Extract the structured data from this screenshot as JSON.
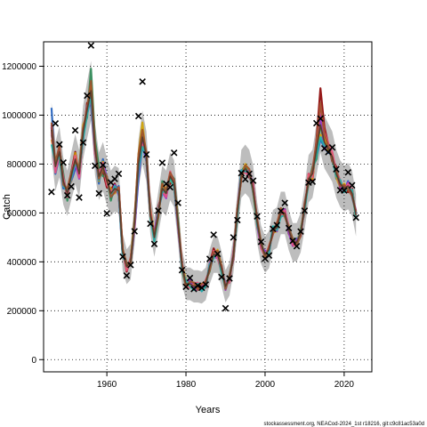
{
  "chart_data": {
    "type": "line",
    "xlabel": "Years",
    "ylabel": "Catch",
    "xlim": [
      1944,
      2027
    ],
    "ylim": [
      -50000,
      1300000
    ],
    "xticks": [
      1960,
      1980,
      2000,
      2020
    ],
    "yticks": [
      0,
      200000,
      400000,
      600000,
      800000,
      1000000,
      1200000
    ],
    "grid": true,
    "footer": "stockassessment.org, NEACod-2024_1st r18216, git:c9c81ac53a0d",
    "band_color": "#bdbdbd",
    "observed_marker": "x",
    "observed_catch": {
      "x": [
        1946,
        1947,
        1948,
        1949,
        1950,
        1951,
        1952,
        1953,
        1954,
        1955,
        1956,
        1957,
        1958,
        1959,
        1960,
        1961,
        1962,
        1963,
        1964,
        1965,
        1966,
        1967,
        1968,
        1969,
        1970,
        1971,
        1972,
        1973,
        1974,
        1975,
        1976,
        1977,
        1978,
        1979,
        1980,
        1981,
        1982,
        1983,
        1984,
        1985,
        1986,
        1987,
        1988,
        1989,
        1990,
        1991,
        1992,
        1993,
        1994,
        1995,
        1996,
        1997,
        1998,
        1999,
        2000,
        2001,
        2002,
        2003,
        2004,
        2005,
        2006,
        2007,
        2008,
        2009,
        2010,
        2011,
        2012,
        2013,
        2014,
        2015,
        2016,
        2017,
        2018,
        2019,
        2020,
        2021,
        2022,
        2023
      ],
      "y": [
        686000,
        966000,
        880000,
        806000,
        672000,
        708000,
        938000,
        663000,
        888000,
        1080000,
        1285000,
        793000,
        680000,
        796000,
        598000,
        725000,
        739000,
        760000,
        421000,
        344000,
        387000,
        525000,
        996000,
        1137000,
        839000,
        556000,
        473000,
        609000,
        805000,
        719000,
        705000,
        846000,
        641000,
        366000,
        298000,
        334000,
        289000,
        303000,
        294000,
        307000,
        412000,
        511000,
        432000,
        338000,
        210000,
        332000,
        500000,
        571000,
        763000,
        738000,
        760000,
        732000,
        586000,
        482000,
        413000,
        426000,
        535000,
        550000,
        608000,
        641000,
        538000,
        486000,
        464000,
        524000,
        609000,
        724000,
        728000,
        967000,
        986000,
        864000,
        849000,
        868000,
        779000,
        693000,
        692000,
        766000,
        713000,
        581000
      ]
    },
    "estimated_catch": {
      "x": [
        1946,
        1947,
        1948,
        1949,
        1950,
        1951,
        1952,
        1953,
        1954,
        1955,
        1956,
        1957,
        1958,
        1959,
        1960,
        1961,
        1962,
        1963,
        1964,
        1965,
        1966,
        1967,
        1968,
        1969,
        1970,
        1971,
        1972,
        1973,
        1974,
        1975,
        1976,
        1977,
        1978,
        1979,
        1980,
        1981,
        1982,
        1983,
        1984,
        1985,
        1986,
        1987,
        1988,
        1989,
        1990,
        1991,
        1992,
        1993,
        1994,
        1995,
        1996,
        1997,
        1998,
        1999,
        2000,
        2001,
        2002,
        2003,
        2004,
        2005,
        2006,
        2007,
        2008,
        2009,
        2010,
        2011,
        2012,
        2013,
        2014,
        2015,
        2016,
        2017,
        2018,
        2019,
        2020,
        2021,
        2022,
        2023
      ],
      "y": [
        940000,
        790000,
        850000,
        730000,
        680000,
        750000,
        820000,
        760000,
        930000,
        1020000,
        1100000,
        860000,
        750000,
        790000,
        730000,
        680000,
        700000,
        690000,
        440000,
        380000,
        400000,
        560000,
        800000,
        910000,
        830000,
        600000,
        500000,
        600000,
        700000,
        680000,
        750000,
        720000,
        560000,
        380000,
        310000,
        310000,
        300000,
        300000,
        295000,
        310000,
        380000,
        430000,
        430000,
        370000,
        300000,
        330000,
        430000,
        600000,
        760000,
        780000,
        760000,
        700000,
        560000,
        470000,
        430000,
        450000,
        530000,
        540000,
        600000,
        600000,
        530000,
        480000,
        480000,
        520000,
        620000,
        740000,
        760000,
        860000,
        960000,
        890000,
        860000,
        830000,
        760000,
        720000,
        700000,
        710000,
        680000,
        590000
      ]
    },
    "series": [
      {
        "color": "#8b0000",
        "offsets": [
          10000,
          -15000,
          20000,
          10000,
          -10000,
          15000,
          30000,
          -10000,
          -20000,
          30000,
          -40000,
          20000,
          30000,
          -20000,
          -25000,
          15000,
          20000,
          -15000,
          10000,
          -20000,
          15000,
          -10000,
          30000,
          -50000,
          20000,
          -15000,
          10000,
          25000,
          -20000,
          15000,
          -30000,
          10000,
          15000,
          -10000,
          10000,
          -10000,
          15000,
          -10000,
          10000,
          -15000,
          10000,
          25000,
          -10000,
          15000,
          -10000,
          15000,
          -20000,
          15000,
          -20000,
          10000,
          -15000,
          20000,
          -10000,
          15000,
          -10000,
          10000,
          -15000,
          20000,
          -10000,
          15000,
          -15000,
          10000,
          -10000,
          15000,
          -20000,
          20000,
          -25000,
          40000,
          150000,
          60000,
          20000,
          -20000,
          30000,
          -20000,
          15000,
          -25000,
          20000,
          -10000
        ]
      },
      {
        "color": "#1f5fbf",
        "offsets": [
          90000,
          -30000,
          -20000,
          -30000,
          20000,
          -20000,
          -40000,
          20000,
          -30000,
          20000,
          -60000,
          -20000,
          -30000,
          30000,
          10000,
          -20000,
          -10000,
          20000,
          -10000,
          15000,
          -10000,
          -20000,
          -60000,
          -30000,
          -20000,
          -10000,
          15000,
          10000,
          -20000,
          -10000,
          10000,
          -15000,
          -20000,
          15000,
          -10000,
          15000,
          -10000,
          10000,
          -15000,
          10000,
          -10000,
          -10000,
          15000,
          -10000,
          15000,
          -10000,
          15000,
          -10000,
          15000,
          -15000,
          10000,
          -20000,
          15000,
          -10000,
          15000,
          -10000,
          15000,
          -15000,
          10000,
          -15000,
          15000,
          -10000,
          15000,
          -15000,
          10000,
          -20000,
          20000,
          -30000,
          -60000,
          -20000,
          -15000,
          15000,
          -20000,
          15000,
          -10000,
          20000,
          -15000,
          10000
        ]
      },
      {
        "color": "#2e8b57",
        "offsets": [
          -20000,
          20000,
          10000,
          30000,
          -30000,
          20000,
          -10000,
          30000,
          20000,
          -30000,
          90000,
          40000,
          40000,
          -40000,
          20000,
          -30000,
          15000,
          -10000,
          -15000,
          10000,
          -15000,
          10000,
          20000,
          30000,
          -20000,
          10000,
          -15000,
          -20000,
          30000,
          -15000,
          10000,
          20000,
          15000,
          -15000,
          -10000,
          10000,
          -15000,
          10000,
          -10000,
          15000,
          -20000,
          10000,
          -10000,
          -15000,
          10000,
          -15000,
          10000,
          -20000,
          10000,
          15000,
          -10000,
          15000,
          10000,
          -15000,
          10000,
          -15000,
          10000,
          10000,
          -15000,
          10000,
          -10000,
          15000,
          10000,
          -10000,
          15000,
          -20000,
          30000,
          -40000,
          10000,
          -30000,
          15000,
          -10000,
          15000,
          10000,
          -15000,
          10000,
          -10000,
          15000
        ]
      },
      {
        "color": "#d2a400",
        "offsets": [
          -40000,
          30000,
          -20000,
          -10000,
          15000,
          -20000,
          25000,
          -15000,
          30000,
          -20000,
          20000,
          -15000,
          -20000,
          20000,
          -10000,
          20000,
          -20000,
          10000,
          15000,
          -10000,
          10000,
          15000,
          40000,
          60000,
          -15000,
          20000,
          10000,
          -10000,
          15000,
          20000,
          -15000,
          -10000,
          20000,
          10000,
          15000,
          -15000,
          10000,
          -15000,
          15000,
          -10000,
          15000,
          -15000,
          20000,
          10000,
          -15000,
          10000,
          -10000,
          15000,
          -10000,
          20000,
          15000,
          -15000,
          -20000,
          10000,
          -15000,
          15000,
          -10000,
          -15000,
          15000,
          -10000,
          20000,
          -15000,
          -10000,
          15000,
          -10000,
          15000,
          -20000,
          20000,
          -40000,
          20000,
          -10000,
          15000,
          -15000,
          -15000,
          20000,
          -10000,
          15000,
          -15000
        ]
      },
      {
        "color": "#9932cc",
        "offsets": [
          20000,
          -10000,
          15000,
          -20000,
          10000,
          -15000,
          -20000,
          -20000,
          15000,
          -15000,
          -30000,
          -10000,
          -15000,
          10000,
          15000,
          -10000,
          15000,
          -20000,
          -15000,
          15000,
          -10000,
          -15000,
          -40000,
          -20000,
          -10000,
          -15000,
          20000,
          15000,
          -15000,
          -20000,
          15000,
          10000,
          -15000,
          -10000,
          10000,
          15000,
          -10000,
          -15000,
          10000,
          -10000,
          15000,
          -10000,
          -15000,
          10000,
          -15000,
          15000,
          -15000,
          10000,
          15000,
          -10000,
          15000,
          10000,
          -15000,
          -10000,
          15000,
          -10000,
          10000,
          -15000,
          10000,
          15000,
          -10000,
          -15000,
          10000,
          -15000,
          15000,
          -10000,
          15000,
          20000,
          40000,
          -30000,
          20000,
          -15000,
          10000,
          -15000,
          -10000,
          15000,
          -10000,
          20000
        ]
      },
      {
        "color": "#e75480",
        "offsets": [
          -10000,
          -25000,
          -10000,
          15000,
          -15000,
          10000,
          15000,
          -15000,
          -10000,
          15000,
          -25000,
          -20000,
          10000,
          15000,
          -15000,
          10000,
          -15000,
          15000,
          10000,
          -15000,
          10000,
          -15000,
          20000,
          -30000,
          10000,
          15000,
          -10000,
          15000,
          -10000,
          -15000,
          20000,
          -15000,
          10000,
          15000,
          -10000,
          -15000,
          10000,
          15000,
          -10000,
          15000,
          -10000,
          15000,
          -15000,
          -10000,
          10000,
          -15000,
          15000,
          -15000,
          10000,
          -15000,
          -10000,
          15000,
          10000,
          -15000,
          -10000,
          15000,
          -15000,
          10000,
          -15000,
          10000,
          15000,
          -10000,
          -15000,
          10000,
          -15000,
          20000,
          -15000,
          30000,
          80000,
          40000,
          25000,
          20000,
          10000,
          15000,
          -15000,
          10000,
          15000,
          -10000
        ]
      },
      {
        "color": "#20b2aa",
        "offsets": [
          -60000,
          15000,
          -15000,
          -20000,
          10000,
          -10000,
          -15000,
          15000,
          -25000,
          -20000,
          -20000,
          10000,
          -15000,
          -10000,
          15000,
          -15000,
          10000,
          -10000,
          -15000,
          15000,
          -15000,
          10000,
          -20000,
          -40000,
          10000,
          -20000,
          -15000,
          10000,
          -15000,
          10000,
          -10000,
          -15000,
          10000,
          -15000,
          15000,
          -10000,
          -15000,
          10000,
          -15000,
          -10000,
          10000,
          -15000,
          10000,
          -15000,
          -10000,
          15000,
          -10000,
          -15000,
          15000,
          -10000,
          10000,
          -15000,
          -10000,
          15000,
          -15000,
          -10000,
          15000,
          -10000,
          -15000,
          -10000,
          10000,
          15000,
          -15000,
          10000,
          -10000,
          -15000,
          10000,
          -20000,
          -50000,
          -15000,
          10000,
          -15000,
          -10000,
          15000,
          -15000,
          -10000,
          15000,
          -15000
        ]
      },
      {
        "color": "#a0522d",
        "offsets": [
          30000,
          15000,
          25000,
          -15000,
          20000,
          15000,
          -10000,
          25000,
          15000,
          10000,
          40000,
          15000,
          -10000,
          -15000,
          20000,
          -15000,
          -15000,
          15000,
          10000,
          15000,
          -15000,
          15000,
          40000,
          30000,
          15000,
          -10000,
          15000,
          -15000,
          20000,
          10000,
          15000,
          15000,
          -10000,
          10000,
          -15000,
          10000,
          15000,
          -15000,
          15000,
          10000,
          -15000,
          10000,
          15000,
          10000,
          -10000,
          15000,
          -10000,
          15000,
          -15000,
          15000,
          20000,
          -10000,
          15000,
          10000,
          -15000,
          10000,
          -15000,
          15000,
          20000,
          -15000,
          10000,
          15000,
          -10000,
          -15000,
          20000,
          -15000,
          20000,
          30000,
          90000,
          30000,
          15000,
          -15000,
          15000,
          -10000,
          15000,
          -15000,
          -10000,
          15000
        ]
      }
    ]
  }
}
